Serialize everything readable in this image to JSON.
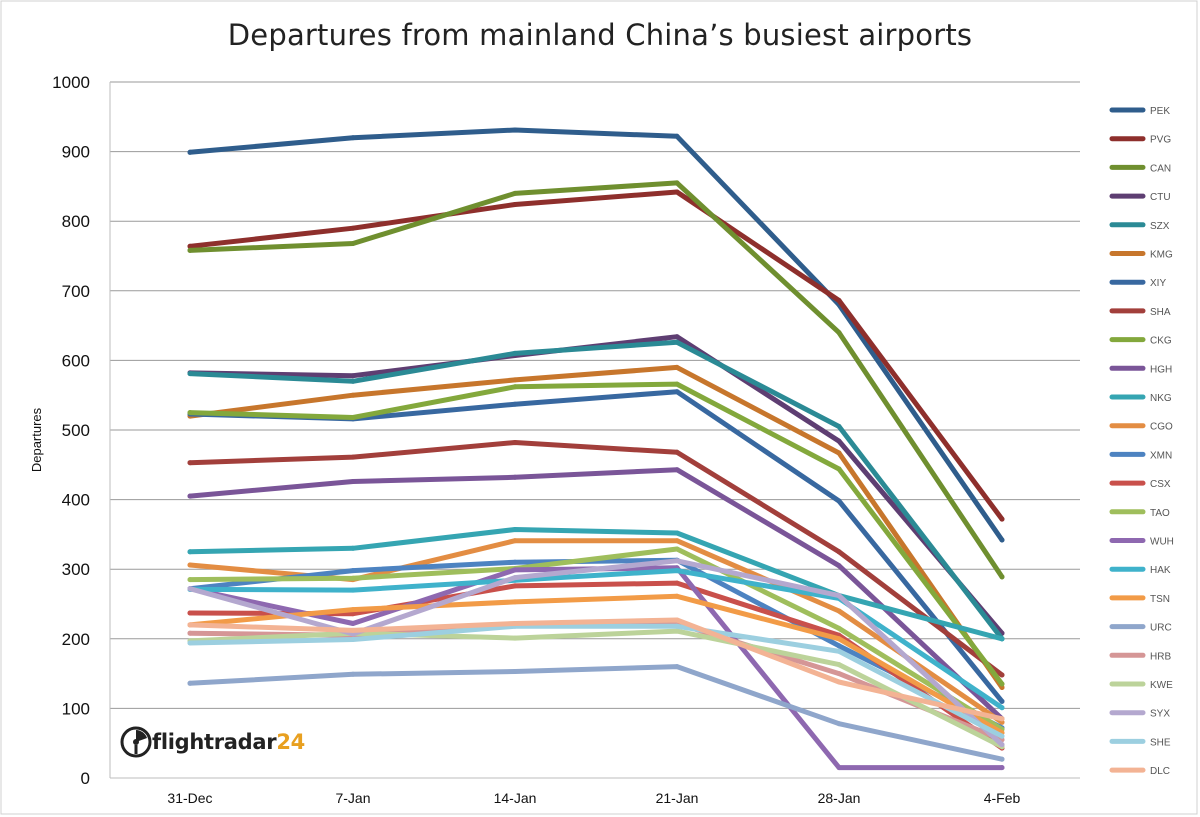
{
  "chart_data": {
    "type": "line",
    "title": "Departures from mainland China’s busiest airports",
    "ylabel": "Departures",
    "xlabel": "",
    "ylim": [
      0,
      1000
    ],
    "yticks": [
      0,
      100,
      200,
      300,
      400,
      500,
      600,
      700,
      800,
      900,
      1000
    ],
    "categories": [
      "31-Dec",
      "7-Jan",
      "14-Jan",
      "21-Jan",
      "28-Jan",
      "4-Feb"
    ],
    "grid": true,
    "legend_position": "right",
    "series": [
      {
        "name": "PEK",
        "color": "#2f5d8c",
        "values": [
          899,
          920,
          931,
          922,
          680,
          342
        ]
      },
      {
        "name": "PVG",
        "color": "#8e2f2c",
        "values": [
          764,
          790,
          824,
          842,
          686,
          372
        ]
      },
      {
        "name": "CAN",
        "color": "#6f8f2f",
        "values": [
          758,
          768,
          840,
          855,
          640,
          289
        ]
      },
      {
        "name": "CTU",
        "color": "#5e3e72",
        "values": [
          582,
          578,
          607,
          634,
          484,
          208
        ]
      },
      {
        "name": "SZX",
        "color": "#2b8a95",
        "values": [
          581,
          570,
          610,
          626,
          505,
          200
        ]
      },
      {
        "name": "KMG",
        "color": "#c7762c",
        "values": [
          520,
          550,
          572,
          590,
          467,
          130
        ]
      },
      {
        "name": "XIY",
        "color": "#3868a0",
        "values": [
          523,
          516,
          537,
          555,
          398,
          110
        ]
      },
      {
        "name": "SHA",
        "color": "#a23f3b",
        "values": [
          453,
          461,
          482,
          468,
          325,
          148
        ]
      },
      {
        "name": "CKG",
        "color": "#83a83c",
        "values": [
          525,
          518,
          562,
          566,
          444,
          135
        ]
      },
      {
        "name": "HGH",
        "color": "#7a5598",
        "values": [
          405,
          426,
          432,
          443,
          305,
          85
        ]
      },
      {
        "name": "NKG",
        "color": "#35a5b2",
        "values": [
          325,
          330,
          357,
          352,
          262,
          200
        ]
      },
      {
        "name": "CGO",
        "color": "#e38d43",
        "values": [
          306,
          285,
          341,
          341,
          240,
          80
        ]
      },
      {
        "name": "XMN",
        "color": "#4d83c1",
        "values": [
          272,
          298,
          310,
          313,
          190,
          72
        ]
      },
      {
        "name": "CSX",
        "color": "#c9504b",
        "values": [
          237,
          236,
          276,
          280,
          205,
          43
        ]
      },
      {
        "name": "TAO",
        "color": "#9fbe5c",
        "values": [
          285,
          287,
          301,
          329,
          215,
          70
        ]
      },
      {
        "name": "WUH",
        "color": "#8e68b0",
        "values": [
          272,
          222,
          299,
          302,
          15,
          15
        ]
      },
      {
        "name": "HAK",
        "color": "#3fb2cb",
        "values": [
          271,
          270,
          284,
          298,
          258,
          101
        ]
      },
      {
        "name": "TSN",
        "color": "#f29b47",
        "values": [
          220,
          242,
          253,
          261,
          200,
          65
        ]
      },
      {
        "name": "URC",
        "color": "#8fa6cb",
        "values": [
          136,
          149,
          153,
          160,
          78,
          27
        ]
      },
      {
        "name": "HRB",
        "color": "#d59696",
        "values": [
          208,
          205,
          220,
          222,
          150,
          55
        ]
      },
      {
        "name": "KWE",
        "color": "#bcd39a",
        "values": [
          197,
          208,
          201,
          211,
          163,
          45
        ]
      },
      {
        "name": "SYX",
        "color": "#b4a8cf",
        "values": [
          272,
          207,
          288,
          312,
          262,
          48
        ]
      },
      {
        "name": "SHE",
        "color": "#9ccfe0",
        "values": [
          194,
          199,
          218,
          218,
          182,
          60
        ]
      },
      {
        "name": "DLC",
        "color": "#f3b394",
        "values": [
          220,
          212,
          222,
          227,
          138,
          85
        ]
      }
    ]
  },
  "logo": {
    "word": "flightradar",
    "number": "24"
  }
}
